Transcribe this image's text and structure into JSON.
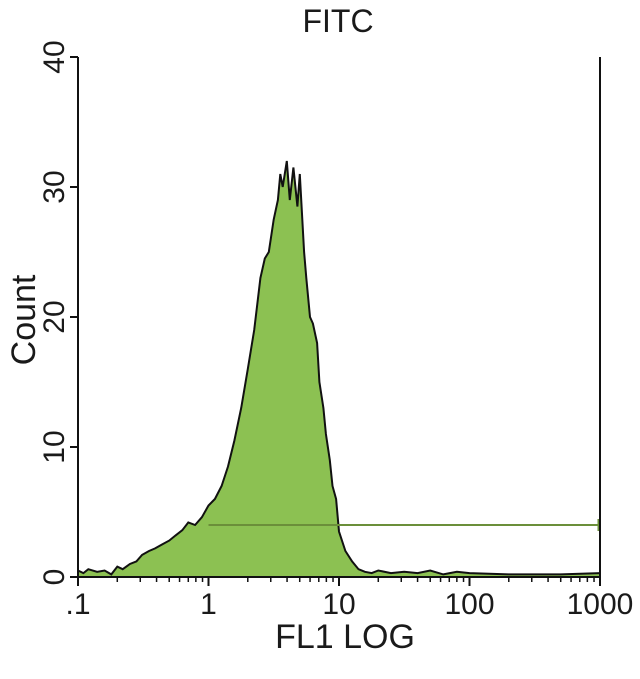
{
  "chart_data": {
    "type": "area",
    "title": "FITC",
    "xlabel": "FL1 LOG",
    "ylabel": "Count",
    "x_scale": "log",
    "xlim": [
      0.1,
      1000
    ],
    "ylim": [
      0,
      40
    ],
    "x_ticks": [
      {
        "value": 0.1,
        "label": ".1"
      },
      {
        "value": 1,
        "label": "1"
      },
      {
        "value": 10,
        "label": "10"
      },
      {
        "value": 100,
        "label": "100"
      },
      {
        "value": 1000,
        "label": "1000"
      }
    ],
    "y_ticks": [
      {
        "value": 0,
        "label": "0"
      },
      {
        "value": 10,
        "label": "10"
      },
      {
        "value": 20,
        "label": "20"
      },
      {
        "value": 30,
        "label": "30"
      },
      {
        "value": 40,
        "label": "40"
      }
    ],
    "grid": false,
    "fill_color": "#8cc152",
    "line_color": "#111111",
    "marker": {
      "type": "horizontal-gate",
      "x_start": 1.0,
      "x_end": 1000,
      "y": 4,
      "color": "#6b8f3a"
    },
    "series": [
      {
        "x": [
          0.1,
          0.11,
          0.12,
          0.14,
          0.16,
          0.18,
          0.2,
          0.22,
          0.25,
          0.28,
          0.31,
          0.35,
          0.39,
          0.44,
          0.5,
          0.56,
          0.63,
          0.7,
          0.79,
          0.89,
          1.0,
          1.12,
          1.26,
          1.41,
          1.58,
          1.78,
          2.0,
          2.24,
          2.5,
          2.7,
          2.9,
          3.16,
          3.4,
          3.55,
          3.7,
          3.98,
          4.2,
          4.47,
          4.8,
          5.01,
          5.4,
          5.62,
          6.0,
          6.31,
          6.8,
          7.08,
          7.6,
          7.94,
          8.5,
          8.91,
          9.5,
          10.0,
          11.2,
          12.6,
          14.1,
          15.8,
          17.8,
          20.0,
          25.0,
          31.6,
          40.0,
          50.0,
          63.0,
          80.0,
          100,
          200,
          500,
          1000
        ],
        "y": [
          0.5,
          0.3,
          0.6,
          0.4,
          0.5,
          0.2,
          0.8,
          0.6,
          1.0,
          1.2,
          1.7,
          2.0,
          2.2,
          2.5,
          2.8,
          3.2,
          3.6,
          4.2,
          4.0,
          4.6,
          5.5,
          6.0,
          7.0,
          8.5,
          10.5,
          13.0,
          16.0,
          19.0,
          23.0,
          24.5,
          25.0,
          27.5,
          29.0,
          31.0,
          30.0,
          32.0,
          29.0,
          31.5,
          28.5,
          31.0,
          25.0,
          23.0,
          20.0,
          19.5,
          18.0,
          15.0,
          13.0,
          11.0,
          9.0,
          7.0,
          6.0,
          3.5,
          2.0,
          1.2,
          0.6,
          0.4,
          0.3,
          0.5,
          0.3,
          0.4,
          0.3,
          0.5,
          0.2,
          0.4,
          0.3,
          0.2,
          0.2,
          0.3
        ]
      }
    ]
  }
}
